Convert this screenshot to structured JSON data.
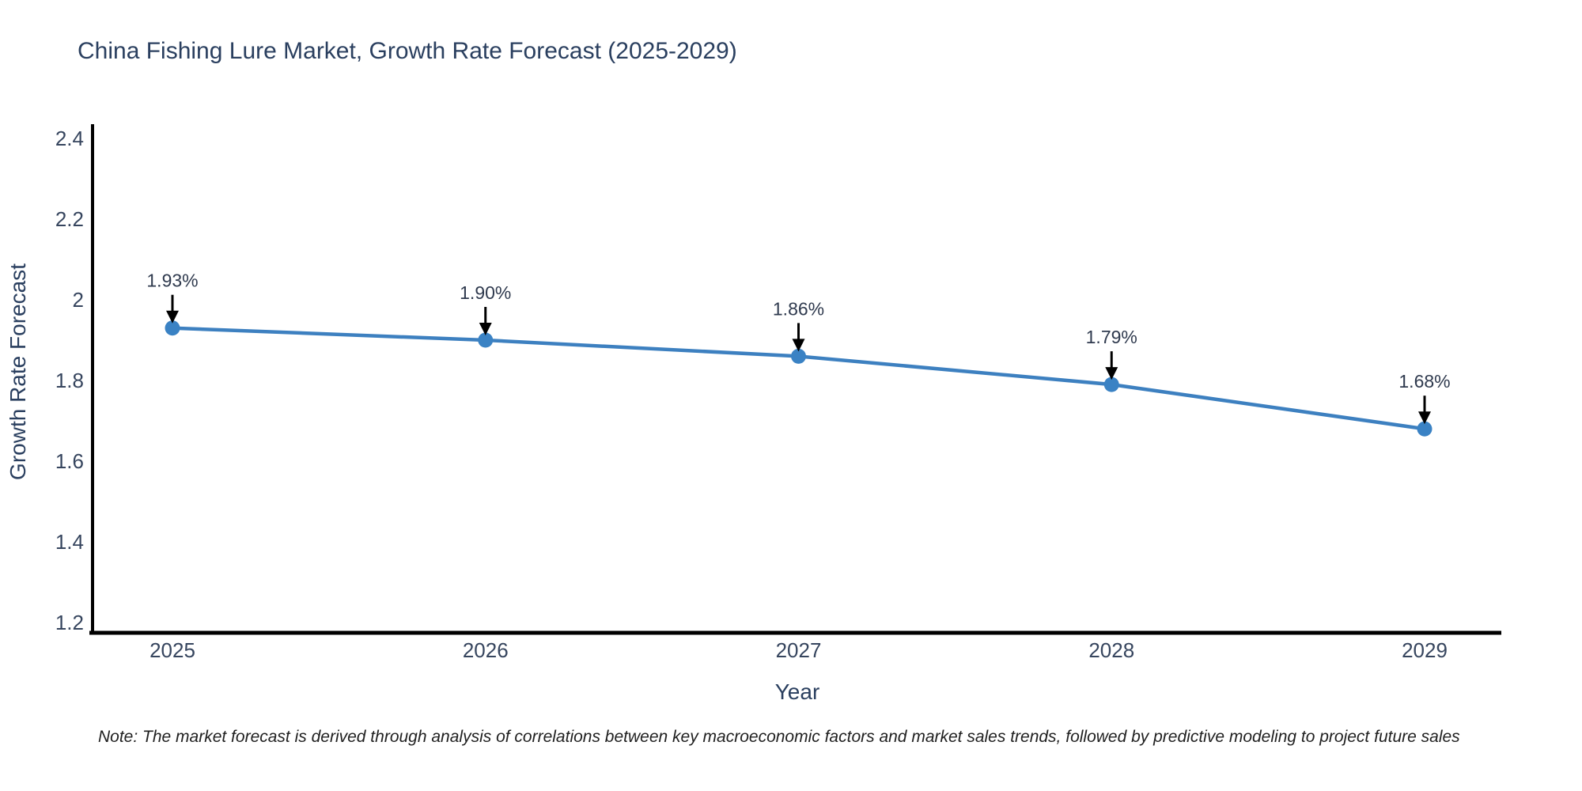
{
  "page": {
    "title": "China Fishing Lure Market, Growth Rate Forecast (2025-2029)",
    "note": "Note: The market forecast is derived through analysis of correlations between key macroeconomic factors and market sales trends, followed by predictive modeling to project future sales"
  },
  "chart_data": {
    "type": "line",
    "title": "China Fishing Lure Market, Growth Rate Forecast (2025-2029)",
    "x": [
      2025,
      2026,
      2027,
      2028,
      2029
    ],
    "values": [
      1.93,
      1.9,
      1.86,
      1.79,
      1.68
    ],
    "point_labels": [
      "1.93%",
      "1.90%",
      "1.86%",
      "1.79%",
      "1.68%"
    ],
    "xtick_labels": [
      "2025",
      "2026",
      "2027",
      "2028",
      "2029"
    ],
    "yticks": [
      1.2,
      1.4,
      1.6,
      1.8,
      2,
      2.2,
      2.4
    ],
    "ytick_labels": [
      "1.2",
      "1.4",
      "1.6",
      "1.8",
      "2",
      "2.2",
      "2.4"
    ],
    "xlabel": "Year",
    "ylabel": "Growth Rate Forecast",
    "ylim": [
      1.2,
      2.4
    ],
    "grid": false,
    "legend": "none",
    "annotations": "value labels with black down-arrows above each point",
    "colors": {
      "line": "#3d80c0",
      "marker": "#3a82c4",
      "axis_line": "#000000",
      "arrow": "#000000",
      "title_text": "#2a3f5f",
      "axis_title_text": "#2a3f5f",
      "tick_text": "#36455e",
      "annotation_text": "#2f3a4e",
      "background": "#ffffff"
    }
  }
}
